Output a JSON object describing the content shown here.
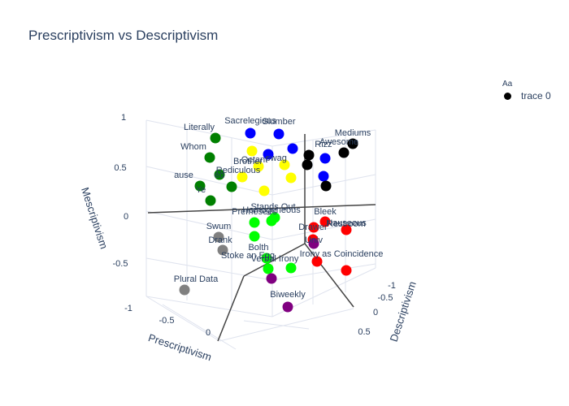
{
  "chart_data": {
    "type": "scatter3d",
    "title": "Prescriptivism vs Descriptivism",
    "axes": {
      "x": {
        "label": "Prescriptivism",
        "range": [
          -1,
          1
        ],
        "ticks": [
          "-0.5",
          "0"
        ]
      },
      "y": {
        "label": "Descriptivism",
        "range": [
          -1,
          1
        ],
        "ticks": [
          "-1",
          "-0.5",
          "0",
          "0.5"
        ]
      },
      "z": {
        "label": "Mescriptivism",
        "range": [
          -1,
          1
        ],
        "ticks": [
          "-1",
          "-0.5",
          "0",
          "0.5",
          "1"
        ]
      }
    },
    "legend": {
      "title": "Aa",
      "entries": [
        "trace 0"
      ]
    },
    "series": [
      {
        "name": "trace 0",
        "points": [
          {
            "label": "Literally",
            "color": "#008000"
          },
          {
            "label": "Whom",
            "color": "#008000"
          },
          {
            "label": "ause",
            "color": "#008000"
          },
          {
            "label": "Ye",
            "color": "#008000"
          },
          {
            "label": "",
            "color": "#008000"
          },
          {
            "label": "ed",
            "color": "#008000"
          },
          {
            "label": "Sacrelegious",
            "color": "#0000ff"
          },
          {
            "label": "Slumber",
            "color": "#0000ff"
          },
          {
            "label": "",
            "color": "#0000ff"
          },
          {
            "label": "",
            "color": "#0000ff"
          },
          {
            "label": "",
            "color": "#0000ff"
          },
          {
            "label": "",
            "color": "#0000ff"
          },
          {
            "label": "Mediums",
            "color": "#000000"
          },
          {
            "label": "Awesome",
            "color": "#000000"
          },
          {
            "label": "Rizz",
            "color": "#000000"
          },
          {
            "label": "",
            "color": "#000000"
          },
          {
            "label": "",
            "color": "#000000"
          },
          {
            "label": "Brother",
            "color": "#ffff00"
          },
          {
            "label": "Octant",
            "color": "#ffff00"
          },
          {
            "label": "Rediculous",
            "color": "#ffff00"
          },
          {
            "label": "swag",
            "color": "#ffff00"
          },
          {
            "label": "",
            "color": "#ffff00"
          },
          {
            "label": "",
            "color": "#ffff00"
          },
          {
            "label": "Stands Out",
            "color": "#00ff00"
          },
          {
            "label": "Premesees",
            "color": "#00ff00"
          },
          {
            "label": "Homogeneous",
            "color": "#00ff00"
          },
          {
            "label": "Bolth",
            "color": "#00ff00"
          },
          {
            "label": "Stoke an Egg",
            "color": "#00ff00"
          },
          {
            "label": "Verbal Irony",
            "color": "#00ff00"
          },
          {
            "label": "",
            "color": "#00ff00"
          },
          {
            "label": "Bleek",
            "color": "#ff0000"
          },
          {
            "label": "Nauseous",
            "color": "#ff0000"
          },
          {
            "label": "Restroom",
            "color": "#ff0000"
          },
          {
            "label": "Drawer",
            "color": "#ff0000"
          },
          {
            "label": "Irony as Coincidence",
            "color": "#ff0000"
          },
          {
            "label": "",
            "color": "#ff0000"
          },
          {
            "label": "Swum",
            "color": "#808080"
          },
          {
            "label": "Drank",
            "color": "#808080"
          },
          {
            "label": "Plural Data",
            "color": "#808080"
          },
          {
            "label": "Univ",
            "color": "#800080"
          },
          {
            "label": "Biweekly",
            "color": "#800080"
          },
          {
            "label": "",
            "color": "#800080"
          }
        ]
      }
    ]
  }
}
